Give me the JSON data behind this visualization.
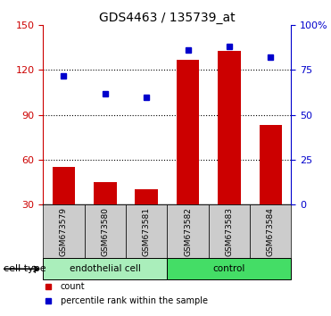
{
  "title": "GDS4463 / 135739_at",
  "samples": [
    "GSM673579",
    "GSM673580",
    "GSM673581",
    "GSM673582",
    "GSM673583",
    "GSM673584"
  ],
  "bar_values": [
    55,
    45,
    40,
    127,
    133,
    83
  ],
  "percentile_values": [
    72,
    62,
    60,
    86,
    88,
    82
  ],
  "bar_color": "#cc0000",
  "point_color": "#0000cc",
  "left_ylim": [
    30,
    150
  ],
  "left_yticks": [
    30,
    60,
    90,
    120,
    150
  ],
  "right_yticks": [
    0,
    25,
    50,
    75,
    100
  ],
  "right_yticklabels": [
    "0",
    "25",
    "50",
    "75",
    "100%"
  ],
  "grid_lines": [
    60,
    90,
    120
  ],
  "groups": [
    {
      "label": "endothelial cell",
      "start": 0,
      "end": 3,
      "color": "#aaeebb"
    },
    {
      "label": "control",
      "start": 3,
      "end": 6,
      "color": "#44dd66"
    }
  ],
  "cell_type_label": "cell type",
  "legend_count_label": "count",
  "legend_pct_label": "percentile rank within the sample",
  "bar_width": 0.55,
  "background_color": "#ffffff",
  "left_axis_color": "#cc0000",
  "right_axis_color": "#0000cc",
  "tick_bg_color": "#cccccc"
}
